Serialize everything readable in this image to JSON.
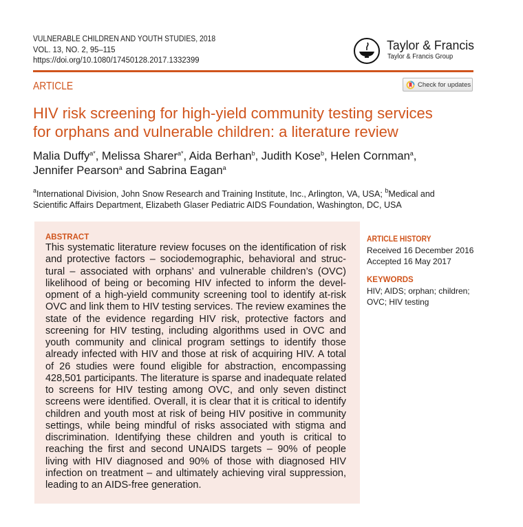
{
  "journal": {
    "name_line": "VULNERABLE CHILDREN AND YOUTH STUDIES, 2018",
    "volume_line": "VOL. 13, NO. 2, 95–115",
    "doi": "https://doi.org/10.1080/17450128.2017.1332399"
  },
  "publisher": {
    "name": "Taylor & Francis",
    "group": "Taylor & Francis Group"
  },
  "article_type": "ARTICLE",
  "check_updates_label": "Check for updates",
  "title_lines": [
    "HIV risk screening for high-yield community testing services",
    "for orphans and vulnerable children: a literature review"
  ],
  "authors": [
    {
      "name": "Malia Duffy",
      "sup": "a*",
      "sep": ", "
    },
    {
      "name": "Melissa Sharer",
      "sup": "a*",
      "sep": ", "
    },
    {
      "name": "Aida Berhan",
      "sup": "b",
      "sep": ", "
    },
    {
      "name": "Judith Kose",
      "sup": "b",
      "sep": ", "
    },
    {
      "name": "Helen Cornman",
      "sup": "a",
      "sep": ","
    },
    {
      "name": "Jennifer Pearson",
      "sup": "a",
      "sep": " and "
    },
    {
      "name": "Sabrina Eagan",
      "sup": "a",
      "sep": ""
    }
  ],
  "affiliations": {
    "a_mark": "a",
    "line1_a": "International Division, John Snow Research and Training Institute, Inc., Arlington, VA, USA; ",
    "b_mark": "b",
    "line1_b": "Medical and",
    "line2": "Scientific Affairs Department, Elizabeth Glaser Pediatric AIDS Foundation, Washington, DC, USA"
  },
  "abstract": {
    "heading": "ABSTRACT",
    "lines": [
      "This systematic literature review focuses on the identification of risk",
      "and protective factors – sociodemographic, behavioral and struc-",
      "tural – associated with orphans’ and vulnerable children’s (OVC)",
      "likelihood of being or becoming HIV infected to inform the devel-",
      "opment of a high-yield community screening tool to identify at-risk",
      "OVC and link them to HIV testing services. The review examines the",
      "state of the evidence regarding HIV risk, protective factors and",
      "screening for HIV testing, including algorithms used in OVC and",
      "youth community and clinical program settings to identify those",
      "already infected with HIV and those at risk of acquiring HIV. A total",
      "of 26 studies were found eligible for abstraction, encompassing",
      "428,501 participants. The literature is sparse and inadequate related",
      "to screens for HIV testing among OVC, and only seven distinct",
      "screens were identified. Overall, it is clear that it is critical to identify",
      "children and youth most at risk of being HIV positive in community",
      "settings, while being mindful of risks associated with stigma and",
      "discrimination. Identifying these children and youth is critical to",
      "reaching the first and second UNAIDS targets – 90% of people",
      "living with HIV diagnosed and 90% of those with diagnosed HIV",
      "infection on treatment – and ultimately achieving viral suppression,",
      "leading to an AIDS-free generation."
    ]
  },
  "article_history": {
    "heading": "ARTICLE HISTORY",
    "received": "Received 16 December 2016",
    "accepted": "Accepted 16 May 2017"
  },
  "keywords": {
    "heading": "KEYWORDS",
    "lines": [
      "HIV; AIDS; orphan; children;",
      "OVC; HIV testing"
    ]
  },
  "colors": {
    "accent": "#d0541c",
    "abstract_background": "#f9e9e4"
  }
}
